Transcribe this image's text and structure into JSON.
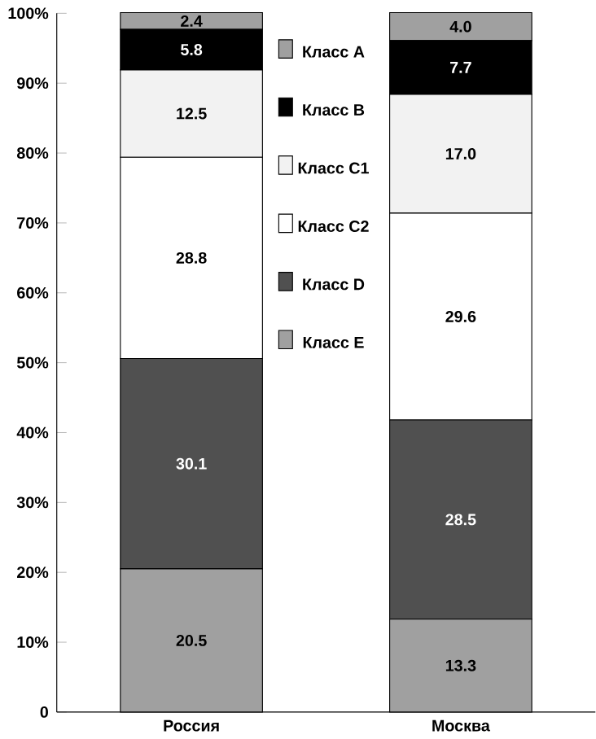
{
  "chart_data": {
    "type": "bar",
    "stacked": true,
    "categories": [
      "Россия",
      "Москва"
    ],
    "series": [
      {
        "name": "Класс E",
        "color": "#a0a0a0",
        "values": [
          20.5,
          13.3
        ],
        "value_labels": [
          "20.5",
          "13.3"
        ]
      },
      {
        "name": "Класс D",
        "color": "#505050",
        "values": [
          30.1,
          28.5
        ],
        "value_labels": [
          "30.1",
          "28.5"
        ]
      },
      {
        "name": "Класс C2",
        "color": "#ffffff",
        "values": [
          28.8,
          29.6
        ],
        "value_labels": [
          "28.8",
          "29.6"
        ]
      },
      {
        "name": "Класс C1",
        "color": "#f2f2f2",
        "values": [
          12.5,
          17.0
        ],
        "value_labels": [
          "12.5",
          "17.0"
        ]
      },
      {
        "name": "Класс B",
        "color": "#000000",
        "values": [
          5.8,
          7.7
        ],
        "value_labels": [
          "5.8",
          "7.7"
        ]
      },
      {
        "name": "Класс A",
        "color": "#a0a0a0",
        "values": [
          2.4,
          4.0
        ],
        "value_labels": [
          "2.4",
          "4.0"
        ]
      }
    ],
    "ylim": [
      0,
      100
    ],
    "yticks": [
      0,
      {
        "value": 10,
        "label": "10%"
      },
      {
        "value": 20,
        "label": "20%"
      },
      {
        "value": 30,
        "label": "30%"
      },
      {
        "value": 40,
        "label": "40%"
      },
      {
        "value": 50,
        "label": "50%"
      },
      {
        "value": 60,
        "label": "60%"
      },
      {
        "value": 70,
        "label": "70%"
      },
      {
        "value": 80,
        "label": "80%"
      },
      {
        "value": 90,
        "label": "90%"
      },
      {
        "value": 100,
        "label": "100%"
      }
    ],
    "legend": "top"
  }
}
